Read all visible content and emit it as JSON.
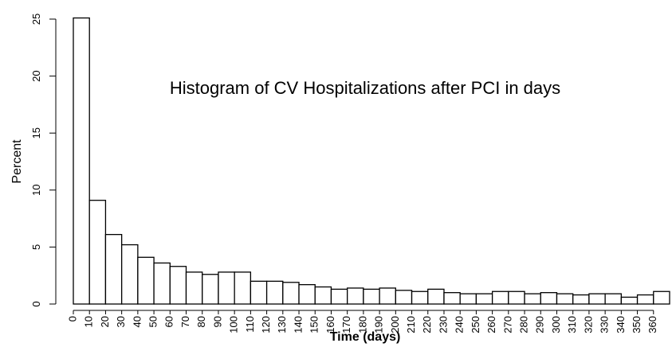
{
  "chart_data": {
    "type": "histogram",
    "title": "Histogram of CV Hospitalizations after PCI in days",
    "x_label": "Time (days)",
    "y_label": "Percent",
    "bins": [
      0,
      10,
      20,
      30,
      40,
      50,
      60,
      70,
      80,
      90,
      100,
      110,
      120,
      130,
      140,
      150,
      160,
      170,
      180,
      190,
      200,
      210,
      220,
      230,
      240,
      250,
      260,
      270,
      280,
      290,
      300,
      310,
      320,
      330,
      340,
      350,
      360,
      370
    ],
    "values": [
      25.1,
      9.1,
      6.1,
      5.2,
      4.1,
      3.6,
      3.3,
      2.8,
      2.6,
      2.8,
      2.8,
      2.0,
      2.0,
      1.9,
      1.7,
      1.5,
      1.3,
      1.4,
      1.3,
      1.4,
      1.2,
      1.1,
      1.3,
      1.0,
      0.9,
      0.9,
      1.1,
      1.1,
      0.9,
      1.0,
      0.9,
      0.8,
      0.9,
      0.9,
      0.6,
      0.8,
      1.1
    ],
    "color": "#ffffff",
    "xlim": [
      0,
      370
    ],
    "xticks": [
      0,
      10,
      20,
      30,
      40,
      50,
      60,
      70,
      80,
      90,
      100,
      110,
      120,
      130,
      140,
      150,
      160,
      170,
      180,
      190,
      200,
      210,
      220,
      230,
      240,
      250,
      260,
      270,
      280,
      290,
      300,
      310,
      320,
      330,
      340,
      350,
      360
    ],
    "ylim": [
      0,
      25
    ],
    "yticks": [
      0,
      5,
      10,
      15,
      20,
      25
    ]
  }
}
